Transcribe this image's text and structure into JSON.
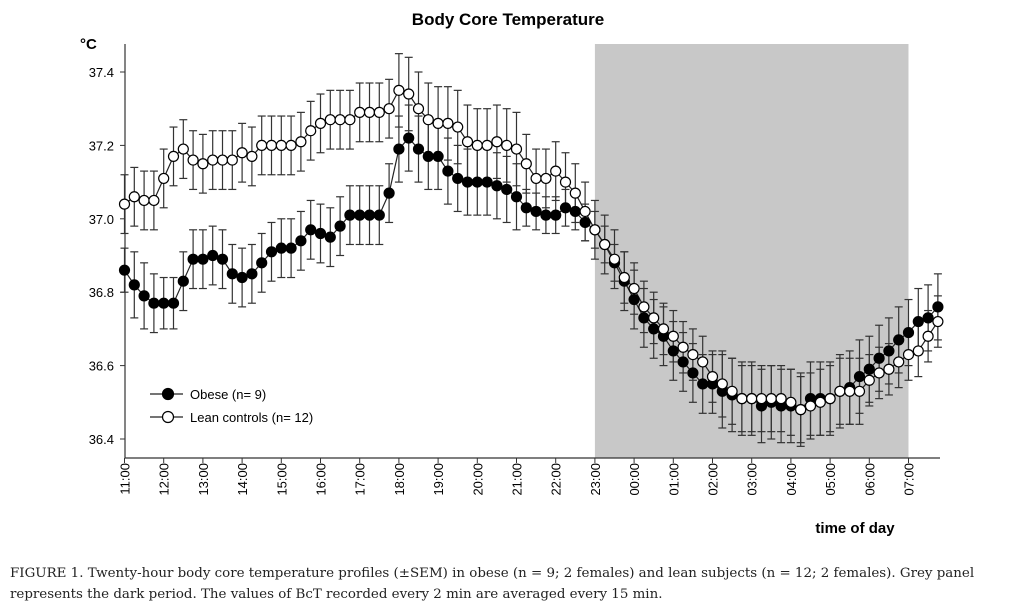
{
  "chart_data": {
    "type": "line",
    "title": "Body Core Temperature",
    "ylabel": "°C",
    "xlabel": "time of day",
    "ylim": [
      36.4,
      37.4
    ],
    "yticks": [
      "36.4",
      "36.6",
      "36.8",
      "37.0",
      "37.2",
      "37.4"
    ],
    "xticks": [
      "11:00",
      "12:00",
      "13:00",
      "14:00",
      "15:00",
      "16:00",
      "17:00",
      "18:00",
      "19:00",
      "20:00",
      "21:00",
      "22:00",
      "23:00",
      "00:00",
      "01:00",
      "02:00",
      "03:00",
      "04:00",
      "05:00",
      "06:00",
      "07:00"
    ],
    "x_interval_minutes": 15,
    "x_start": "11:00",
    "x_end": "07:45",
    "grid": false,
    "legend_position": "bottom-left",
    "shaded_region": {
      "from": "23:00",
      "to": "07:00",
      "color": "#c8c8c8"
    },
    "series": [
      {
        "name": "Obese (n= 9)",
        "marker": "filled-circle",
        "color": "#000000",
        "values": [
          36.86,
          36.82,
          36.79,
          36.77,
          36.77,
          36.77,
          36.83,
          36.89,
          36.89,
          36.9,
          36.89,
          36.85,
          36.84,
          36.85,
          36.88,
          36.91,
          36.92,
          36.92,
          36.94,
          36.97,
          36.96,
          36.95,
          36.98,
          37.01,
          37.01,
          37.01,
          37.01,
          37.07,
          37.19,
          37.22,
          37.19,
          37.17,
          37.17,
          37.13,
          37.11,
          37.1,
          37.1,
          37.1,
          37.09,
          37.08,
          37.06,
          37.03,
          37.02,
          37.01,
          37.01,
          37.03,
          37.02,
          36.99,
          36.97,
          36.93,
          36.88,
          36.83,
          36.78,
          36.73,
          36.7,
          36.68,
          36.64,
          36.61,
          36.58,
          36.55,
          36.55,
          36.53,
          36.52,
          36.51,
          36.51,
          36.49,
          36.5,
          36.49,
          36.49,
          36.48,
          36.51,
          36.51,
          36.51,
          36.53,
          36.54,
          36.57,
          36.59,
          36.62,
          36.64,
          36.67,
          36.69,
          36.72,
          36.73,
          36.76
        ],
        "sem": [
          0.06,
          0.09,
          0.09,
          0.08,
          0.07,
          0.07,
          0.08,
          0.08,
          0.08,
          0.08,
          0.08,
          0.08,
          0.08,
          0.08,
          0.08,
          0.08,
          0.08,
          0.08,
          0.08,
          0.08,
          0.08,
          0.08,
          0.08,
          0.08,
          0.08,
          0.08,
          0.08,
          0.08,
          0.09,
          0.09,
          0.09,
          0.09,
          0.09,
          0.09,
          0.09,
          0.09,
          0.09,
          0.09,
          0.09,
          0.09,
          0.09,
          0.05,
          0.05,
          0.05,
          0.05,
          0.05,
          0.05,
          0.05,
          0.05,
          0.05,
          0.05,
          0.08,
          0.08,
          0.08,
          0.08,
          0.08,
          0.08,
          0.08,
          0.08,
          0.08,
          0.08,
          0.1,
          0.1,
          0.1,
          0.1,
          0.1,
          0.1,
          0.1,
          0.1,
          0.1,
          0.1,
          0.1,
          0.1,
          0.1,
          0.1,
          0.1,
          0.09,
          0.09,
          0.09,
          0.09,
          0.09,
          0.09,
          0.09,
          0.09
        ]
      },
      {
        "name": "Lean controls (n= 12)",
        "marker": "open-circle",
        "color": "#000000",
        "values": [
          37.04,
          37.06,
          37.05,
          37.05,
          37.11,
          37.17,
          37.19,
          37.16,
          37.15,
          37.16,
          37.16,
          37.16,
          37.18,
          37.17,
          37.2,
          37.2,
          37.2,
          37.2,
          37.21,
          37.24,
          37.26,
          37.27,
          37.27,
          37.27,
          37.29,
          37.29,
          37.29,
          37.3,
          37.35,
          37.34,
          37.3,
          37.27,
          37.26,
          37.26,
          37.25,
          37.21,
          37.2,
          37.2,
          37.21,
          37.2,
          37.19,
          37.15,
          37.11,
          37.11,
          37.13,
          37.1,
          37.07,
          37.02,
          36.97,
          36.93,
          36.89,
          36.84,
          36.81,
          36.76,
          36.73,
          36.7,
          36.68,
          36.65,
          36.63,
          36.61,
          36.57,
          36.55,
          36.53,
          36.51,
          36.51,
          36.51,
          36.51,
          36.51,
          36.5,
          36.48,
          36.49,
          36.5,
          36.51,
          36.53,
          36.53,
          36.53,
          36.56,
          36.58,
          36.59,
          36.61,
          36.63,
          36.64,
          36.68,
          36.72
        ],
        "sem": [
          0.08,
          0.08,
          0.08,
          0.08,
          0.08,
          0.08,
          0.08,
          0.08,
          0.08,
          0.08,
          0.08,
          0.08,
          0.08,
          0.08,
          0.08,
          0.08,
          0.08,
          0.08,
          0.08,
          0.08,
          0.08,
          0.08,
          0.08,
          0.08,
          0.08,
          0.08,
          0.08,
          0.08,
          0.1,
          0.1,
          0.1,
          0.1,
          0.1,
          0.1,
          0.1,
          0.1,
          0.1,
          0.1,
          0.1,
          0.1,
          0.1,
          0.08,
          0.08,
          0.08,
          0.08,
          0.08,
          0.08,
          0.08,
          0.08,
          0.08,
          0.08,
          0.07,
          0.07,
          0.07,
          0.07,
          0.07,
          0.07,
          0.07,
          0.07,
          0.07,
          0.07,
          0.09,
          0.09,
          0.09,
          0.09,
          0.09,
          0.09,
          0.09,
          0.09,
          0.09,
          0.09,
          0.09,
          0.09,
          0.09,
          0.09,
          0.09,
          0.07,
          0.07,
          0.07,
          0.07,
          0.07,
          0.07,
          0.07,
          0.07
        ]
      }
    ]
  },
  "caption": "FIGURE 1.  Twenty-hour body core temperature profiles (±SEM) in obese (n = 9; 2 females) and lean subjects (n = 12; 2 females). Grey panel represents the dark period. The values of BcT recorded every 2 min are averaged every 15 min."
}
